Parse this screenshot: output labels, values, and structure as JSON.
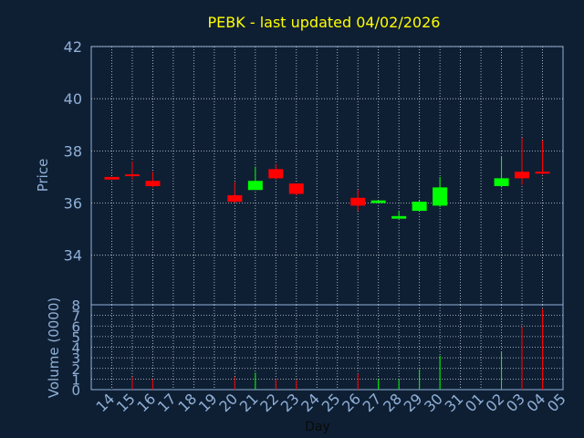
{
  "chart_data": {
    "type": "candlestick",
    "title": "PEBK - last updated 04/02/2026",
    "xlabel": "Day",
    "price_panel": {
      "ylabel": "Price",
      "ylim": [
        32.1,
        42
      ],
      "y_ticks": [
        34,
        36,
        38,
        40,
        42
      ]
    },
    "volume_panel": {
      "ylabel": "Volume (0000)",
      "ylim": [
        0,
        8
      ],
      "y_ticks": [
        0,
        1,
        2,
        3,
        4,
        5,
        6,
        7,
        8
      ]
    },
    "x_ticks": [
      "14",
      "15",
      "16",
      "17",
      "18",
      "19",
      "20",
      "21",
      "22",
      "23",
      "24",
      "25",
      "26",
      "27",
      "28",
      "29",
      "30",
      "31",
      "01",
      "02",
      "03",
      "04",
      "05"
    ],
    "candles": [
      {
        "x": "14",
        "open": 37.0,
        "high": 37.0,
        "low": 36.9,
        "close": 36.9,
        "volume": 0.05
      },
      {
        "x": "15",
        "open": 37.1,
        "high": 37.6,
        "low": 36.9,
        "close": 37.05,
        "volume": 1.2
      },
      {
        "x": "16",
        "open": 36.85,
        "high": 37.2,
        "low": 36.6,
        "close": 36.65,
        "volume": 1.0
      },
      {
        "x": "20",
        "open": 36.3,
        "high": 36.8,
        "low": 36.0,
        "close": 36.05,
        "volume": 1.2
      },
      {
        "x": "21",
        "open": 36.5,
        "high": 37.4,
        "low": 36.5,
        "close": 36.85,
        "volume": 1.6
      },
      {
        "x": "22",
        "open": 37.3,
        "high": 37.5,
        "low": 36.9,
        "close": 36.95,
        "volume": 1.0
      },
      {
        "x": "23",
        "open": 36.75,
        "high": 36.75,
        "low": 36.3,
        "close": 36.35,
        "volume": 0.9
      },
      {
        "x": "26",
        "open": 36.2,
        "high": 36.5,
        "low": 35.7,
        "close": 35.9,
        "volume": 1.5
      },
      {
        "x": "27",
        "open": 36.0,
        "high": 36.1,
        "low": 36.0,
        "close": 36.1,
        "volume": 1.0
      },
      {
        "x": "28",
        "open": 35.4,
        "high": 35.7,
        "low": 35.4,
        "close": 35.5,
        "volume": 1.0
      },
      {
        "x": "29",
        "open": 35.7,
        "high": 36.1,
        "low": 35.7,
        "close": 36.05,
        "volume": 1.9
      },
      {
        "x": "30",
        "open": 35.9,
        "high": 37.0,
        "low": 35.85,
        "close": 36.6,
        "volume": 3.2
      },
      {
        "x": "02",
        "open": 36.65,
        "high": 37.8,
        "low": 36.6,
        "close": 36.95,
        "volume": 3.6
      },
      {
        "x": "03",
        "open": 37.2,
        "high": 38.5,
        "low": 36.7,
        "close": 36.95,
        "volume": 5.9
      },
      {
        "x": "04",
        "open": 37.2,
        "high": 38.4,
        "low": 37.1,
        "close": 37.15,
        "volume": 7.6
      }
    ],
    "colors": {
      "background": "#0f1f33",
      "plot_bg": "#0f1f33",
      "frame": "#8fb0d8",
      "grid": "#c8d2de",
      "axis_text": "#8fb0d8",
      "title": "#ffff00",
      "up": "#00ff00",
      "down": "#ff0000"
    },
    "grid": true
  }
}
